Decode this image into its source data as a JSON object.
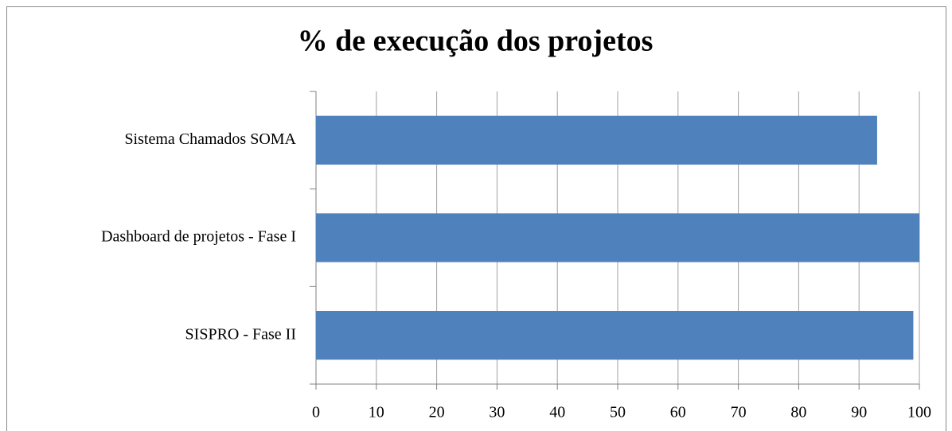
{
  "chart_data": {
    "type": "barh",
    "title": "% de execução dos projetos",
    "categories": [
      "Sistema Chamados SOMA",
      "Dashboard de projetos - Fase I",
      "SISPRO - Fase II"
    ],
    "values": [
      93,
      100,
      99
    ],
    "color": "#4f81bd",
    "xlim": [
      0,
      100
    ],
    "xticks": [
      0,
      10,
      20,
      30,
      40,
      50,
      60,
      70,
      80,
      90,
      100
    ],
    "grid": true
  }
}
